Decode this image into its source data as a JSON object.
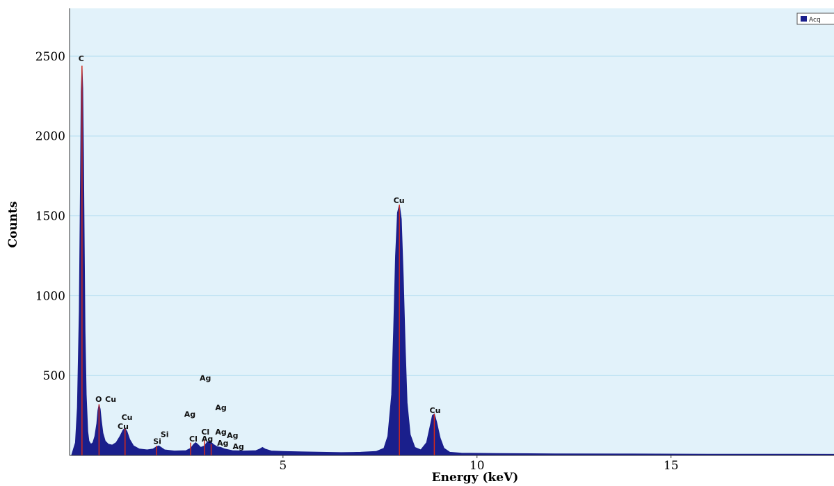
{
  "chart_data": {
    "type": "area",
    "title": "",
    "xlabel": "Energy (keV)",
    "ylabel": "Counts",
    "xlim": [
      -0.5,
      19.2
    ],
    "ylim": [
      0,
      2800
    ],
    "x_ticks": [
      5,
      10,
      15
    ],
    "y_ticks": [
      500,
      1000,
      1500,
      2000,
      2500
    ],
    "grid": "horizontal",
    "legend": {
      "label": "Acq",
      "position": "top-right"
    },
    "colors": {
      "plot_background": "#e2f2fa",
      "gridline": "#a8d8ee",
      "spectrum_fill": "#1a1f8c",
      "peak_marker": "#d42a1a"
    },
    "series": [
      {
        "values": [
          [
            -0.45,
            0
          ],
          [
            -0.4,
            40
          ],
          [
            -0.35,
            80
          ],
          [
            -0.3,
            300
          ],
          [
            -0.25,
            900
          ],
          [
            -0.22,
            1700
          ],
          [
            -0.2,
            2280
          ],
          [
            -0.18,
            2440
          ],
          [
            -0.16,
            2300
          ],
          [
            -0.14,
            1870
          ],
          [
            -0.12,
            1300
          ],
          [
            -0.1,
            780
          ],
          [
            -0.07,
            380
          ],
          [
            -0.03,
            150
          ],
          [
            0.0,
            90
          ],
          [
            0.05,
            70
          ],
          [
            0.1,
            80
          ],
          [
            0.15,
            120
          ],
          [
            0.2,
            200
          ],
          [
            0.23,
            280
          ],
          [
            0.26,
            320
          ],
          [
            0.29,
            290
          ],
          [
            0.32,
            220
          ],
          [
            0.36,
            140
          ],
          [
            0.42,
            90
          ],
          [
            0.5,
            70
          ],
          [
            0.6,
            65
          ],
          [
            0.7,
            80
          ],
          [
            0.8,
            120
          ],
          [
            0.88,
            160
          ],
          [
            0.93,
            170
          ],
          [
            0.98,
            150
          ],
          [
            1.05,
            100
          ],
          [
            1.15,
            60
          ],
          [
            1.3,
            40
          ],
          [
            1.5,
            35
          ],
          [
            1.65,
            40
          ],
          [
            1.74,
            55
          ],
          [
            1.8,
            60
          ],
          [
            1.86,
            50
          ],
          [
            1.95,
            35
          ],
          [
            2.2,
            28
          ],
          [
            2.5,
            30
          ],
          [
            2.62,
            45
          ],
          [
            2.7,
            70
          ],
          [
            2.75,
            80
          ],
          [
            2.8,
            70
          ],
          [
            2.88,
            50
          ],
          [
            2.98,
            60
          ],
          [
            3.05,
            85
          ],
          [
            3.12,
            90
          ],
          [
            3.2,
            70
          ],
          [
            3.3,
            55
          ],
          [
            3.4,
            50
          ],
          [
            3.5,
            40
          ],
          [
            3.7,
            30
          ],
          [
            4.0,
            28
          ],
          [
            4.3,
            30
          ],
          [
            4.4,
            40
          ],
          [
            4.47,
            50
          ],
          [
            4.54,
            40
          ],
          [
            4.7,
            28
          ],
          [
            5.0,
            25
          ],
          [
            5.5,
            22
          ],
          [
            6.0,
            20
          ],
          [
            6.5,
            18
          ],
          [
            7.0,
            20
          ],
          [
            7.4,
            25
          ],
          [
            7.6,
            45
          ],
          [
            7.7,
            120
          ],
          [
            7.8,
            380
          ],
          [
            7.85,
            780
          ],
          [
            7.9,
            1250
          ],
          [
            7.95,
            1520
          ],
          [
            8.0,
            1570
          ],
          [
            8.05,
            1480
          ],
          [
            8.1,
            1120
          ],
          [
            8.15,
            680
          ],
          [
            8.2,
            330
          ],
          [
            8.28,
            130
          ],
          [
            8.4,
            50
          ],
          [
            8.55,
            35
          ],
          [
            8.7,
            80
          ],
          [
            8.78,
            170
          ],
          [
            8.85,
            250
          ],
          [
            8.9,
            260
          ],
          [
            8.96,
            210
          ],
          [
            9.05,
            110
          ],
          [
            9.15,
            45
          ],
          [
            9.3,
            20
          ],
          [
            9.6,
            14
          ],
          [
            10.5,
            12
          ],
          [
            12.0,
            10
          ],
          [
            14.0,
            9
          ],
          [
            16.0,
            8
          ],
          [
            18.0,
            8
          ],
          [
            19.2,
            7
          ]
        ]
      }
    ],
    "peak_markers": [
      {
        "x": -0.18,
        "y": 2440
      },
      {
        "x": 0.26,
        "y": 320
      },
      {
        "x": 0.93,
        "y": 170
      },
      {
        "x": 1.74,
        "y": 60
      },
      {
        "x": 2.62,
        "y": 80
      },
      {
        "x": 2.98,
        "y": 95
      },
      {
        "x": 3.15,
        "y": 70
      },
      {
        "x": 8.0,
        "y": 1570
      },
      {
        "x": 8.9,
        "y": 260
      }
    ],
    "annotations": [
      {
        "text": "C",
        "x": -0.2,
        "y": 2470
      },
      {
        "text": "O",
        "x": 0.25,
        "y": 335
      },
      {
        "text": "Cu",
        "x": 0.56,
        "y": 335
      },
      {
        "text": "Cu",
        "x": 0.98,
        "y": 223
      },
      {
        "text": "Cu",
        "x": 0.88,
        "y": 165
      },
      {
        "text": "Si",
        "x": 1.95,
        "y": 115
      },
      {
        "text": "Si",
        "x": 1.76,
        "y": 72
      },
      {
        "text": "Ag",
        "x": 3.0,
        "y": 468
      },
      {
        "text": "Ag",
        "x": 3.4,
        "y": 282
      },
      {
        "text": "Ag",
        "x": 2.6,
        "y": 242
      },
      {
        "text": "Cl",
        "x": 3.0,
        "y": 130
      },
      {
        "text": "Ag",
        "x": 3.4,
        "y": 130
      },
      {
        "text": "Ag",
        "x": 3.7,
        "y": 108
      },
      {
        "text": "Cl",
        "x": 2.69,
        "y": 87
      },
      {
        "text": "Ag",
        "x": 3.05,
        "y": 87
      },
      {
        "text": "Ag",
        "x": 3.45,
        "y": 60
      },
      {
        "text": "Ag",
        "x": 3.85,
        "y": 40
      },
      {
        "text": "Cu",
        "x": 7.99,
        "y": 1580
      },
      {
        "text": "Cu",
        "x": 8.92,
        "y": 266
      }
    ]
  }
}
